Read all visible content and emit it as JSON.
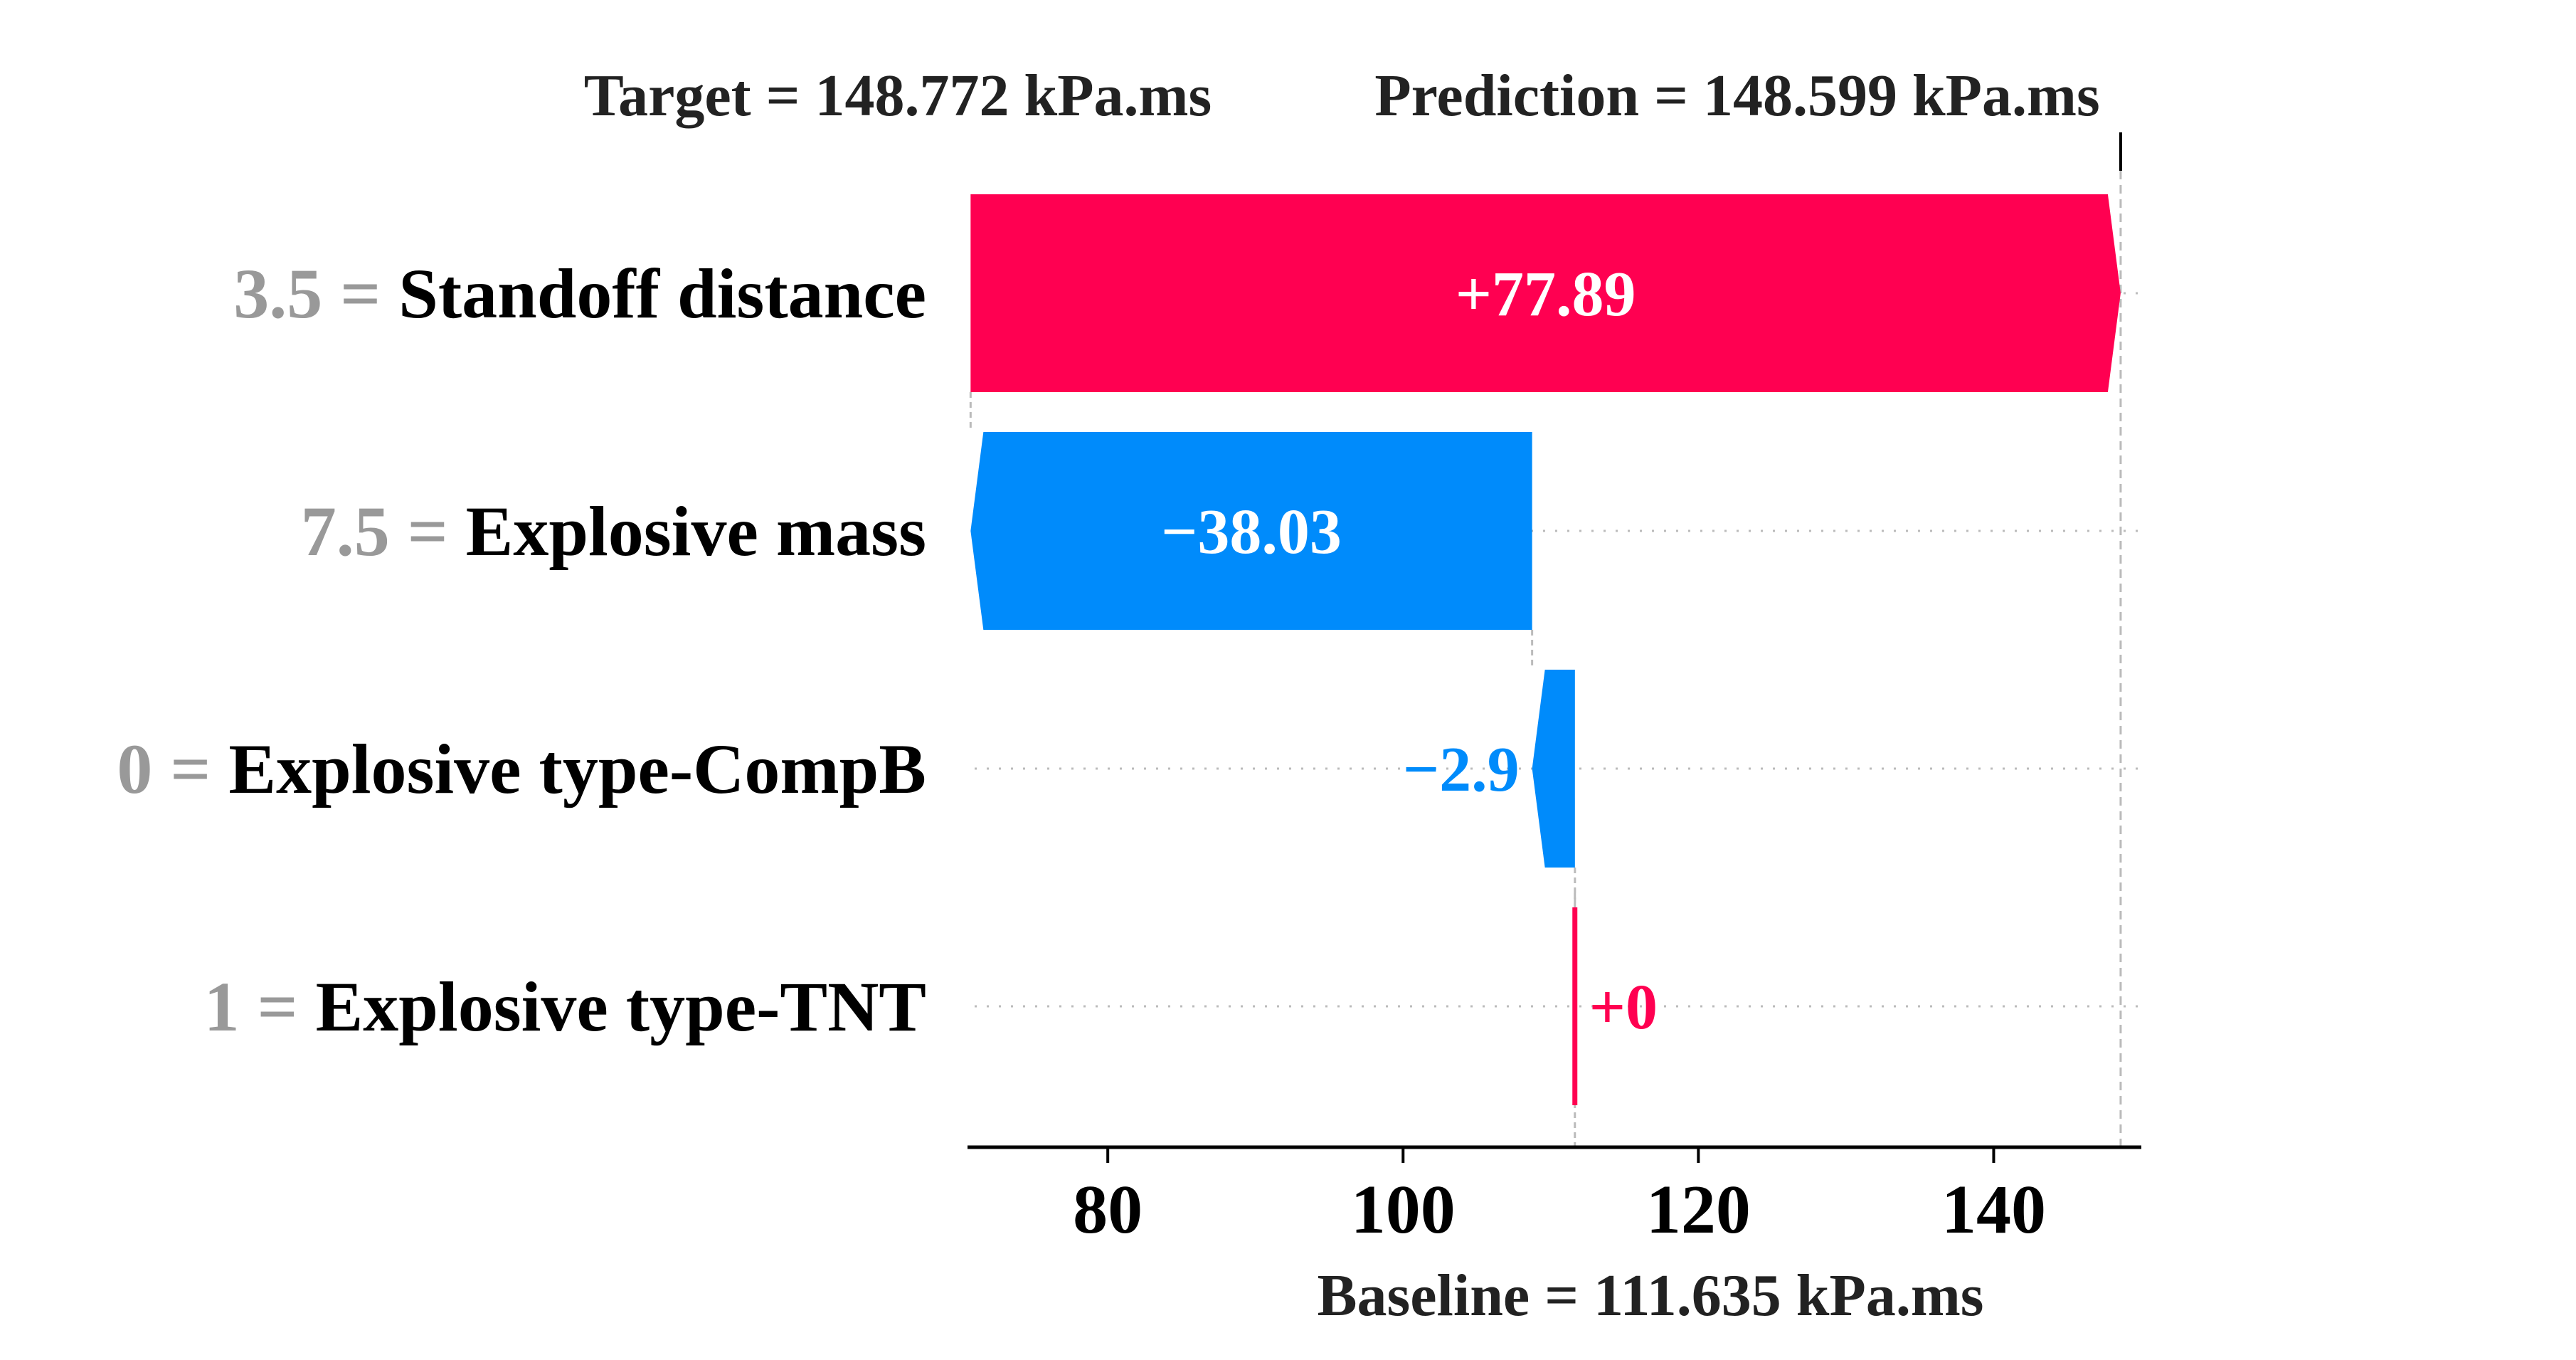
{
  "header": {
    "target_label": "Target = 148.772 kPa.ms",
    "prediction_label": "Prediction = 148.599 kPa.ms"
  },
  "baseline_label": "Baseline = 111.635 kPa.ms",
  "colors": {
    "positive": "#ff0051",
    "negative": "#008bfb",
    "feature_value": "#999999",
    "axis": "#000000",
    "guide": "#bbbbbb"
  },
  "chart_data": {
    "type": "waterfall",
    "baseline": 111.635,
    "prediction": 148.599,
    "target": 148.772,
    "xlim": [
      70.5,
      150
    ],
    "xticks": [
      80,
      100,
      120,
      140
    ],
    "xtick_labels": [
      "80",
      "100",
      "120",
      "140"
    ],
    "features": [
      {
        "value": "3.5",
        "name": "Standoff distance",
        "contribution": 77.89,
        "label": "+77.89"
      },
      {
        "value": "7.5",
        "name": "Explosive mass",
        "contribution": -38.03,
        "label": "−38.03"
      },
      {
        "value": "0",
        "name": "Explosive type-CompB",
        "contribution": -2.9,
        "label": "−2.9"
      },
      {
        "value": "1",
        "name": "Explosive type-TNT",
        "contribution": 0,
        "label": "+0"
      }
    ]
  }
}
